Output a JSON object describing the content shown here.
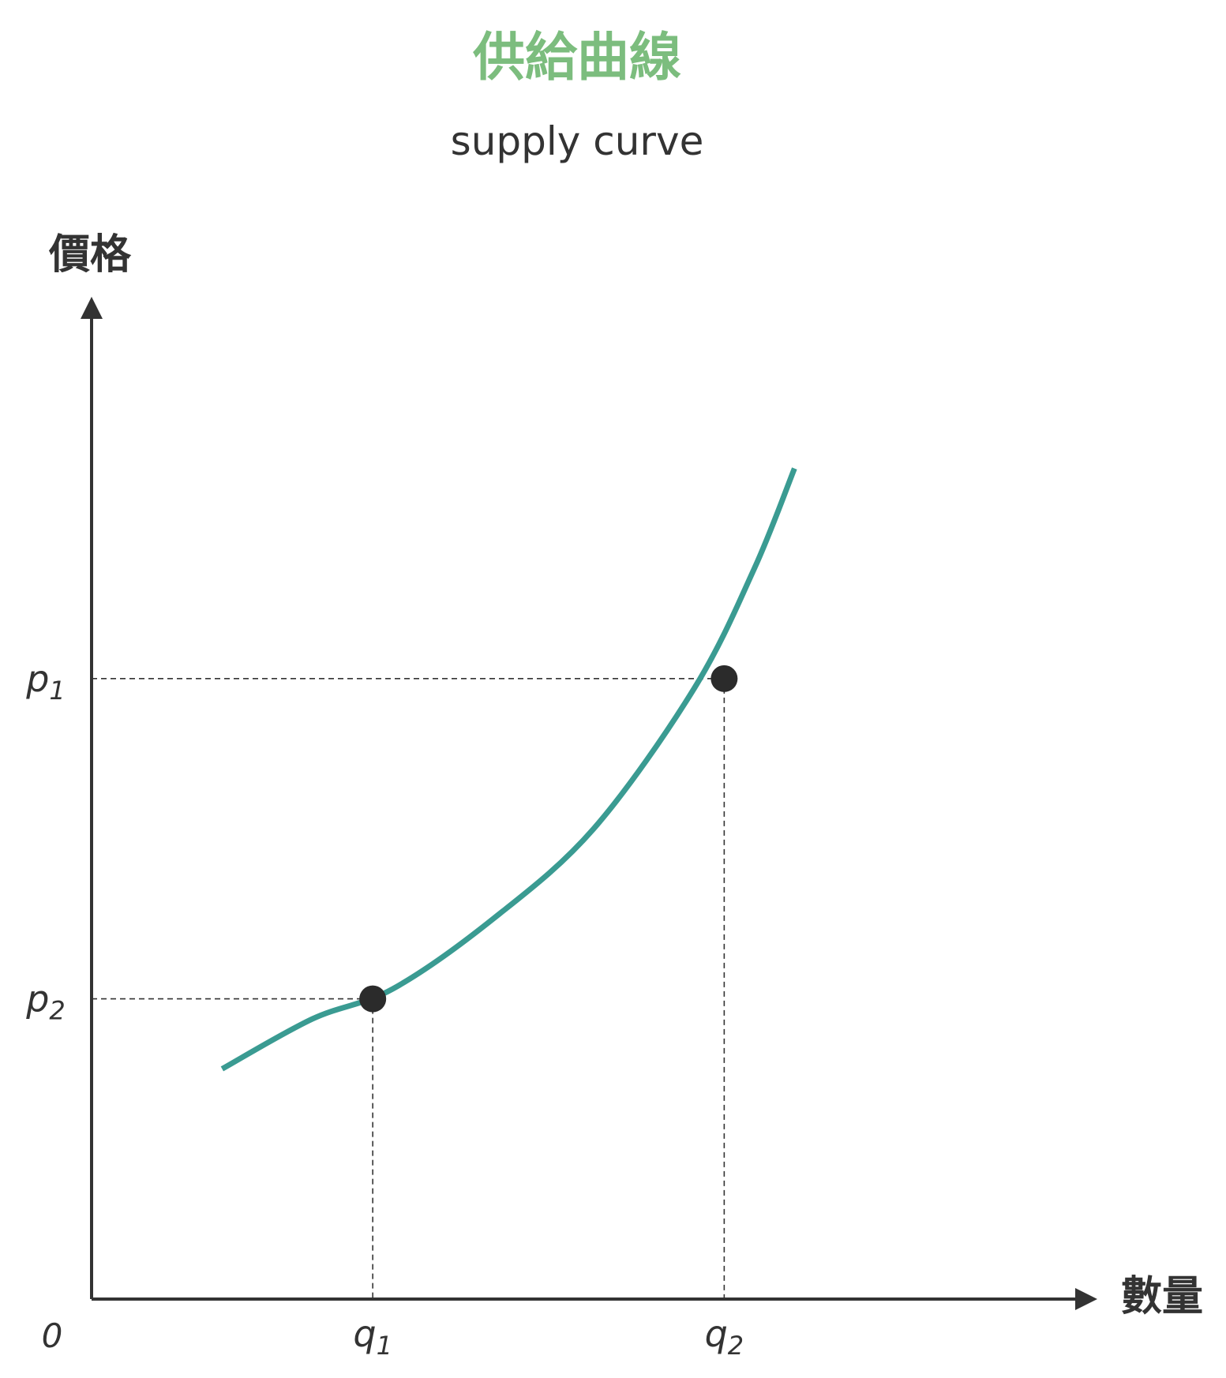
{
  "chart_data": {
    "type": "line",
    "title": "供給曲線",
    "subtitle": "supply curve",
    "ylabel": "價格",
    "xlabel": "數量",
    "origin_label": "0",
    "series": [
      {
        "x": [
          0.13,
          0.22,
          0.3,
          0.4,
          0.5,
          0.6,
          0.66,
          0.7
        ],
        "y": [
          0.23,
          0.28,
          0.31,
          0.38,
          0.47,
          0.61,
          0.73,
          0.83
        ]
      }
    ],
    "points": [
      {
        "x_label": "q",
        "x_sub": "1",
        "y_label": "p",
        "y_sub": "2",
        "x": 0.28,
        "y": 0.3
      },
      {
        "x_label": "q",
        "x_sub": "2",
        "y_label": "p",
        "y_sub": "1",
        "x": 0.63,
        "y": 0.62
      }
    ],
    "colors": {
      "title": "#7cbd7e",
      "text": "#333333",
      "curve": "#3a9b92",
      "point": "#2b2b2b",
      "axis": "#333333"
    }
  }
}
